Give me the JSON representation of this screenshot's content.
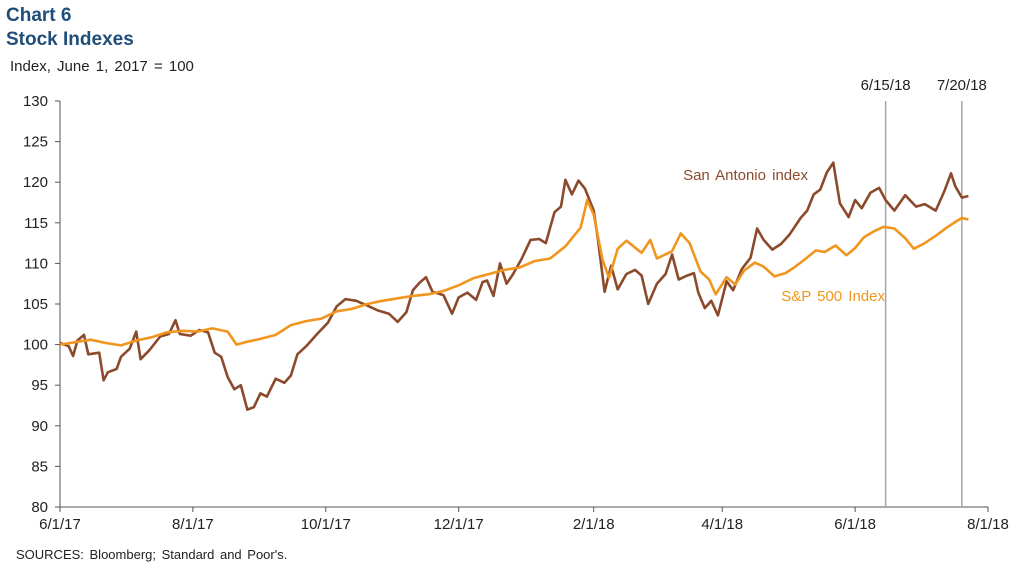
{
  "chart_data": {
    "type": "line",
    "chart_number": "Chart 6",
    "title": "Stock Indexes",
    "ylabel": "Index, June 1, 2017 = 100",
    "source": "SOURCES: Bloomberg; Standard and Poor's.",
    "ylim": [
      80,
      130
    ],
    "y_ticks": [
      80,
      85,
      90,
      95,
      100,
      105,
      110,
      115,
      120,
      125,
      130
    ],
    "xlim": [
      "2017-06-01",
      "2018-08-01"
    ],
    "x_ticks": [
      {
        "date": "2017-06-01",
        "label": "6/1/17"
      },
      {
        "date": "2017-08-01",
        "label": "8/1/17"
      },
      {
        "date": "2017-10-01",
        "label": "10/1/17"
      },
      {
        "date": "2017-12-01",
        "label": "12/1/17"
      },
      {
        "date": "2018-02-01",
        "label": "2/1/18"
      },
      {
        "date": "2018-04-01",
        "label": "4/1/18"
      },
      {
        "date": "2018-06-01",
        "label": "6/1/18"
      },
      {
        "date": "2018-08-01",
        "label": "8/1/18"
      }
    ],
    "markers": [
      {
        "date": "2018-06-15",
        "label": "6/15/18"
      },
      {
        "date": "2018-07-20",
        "label": "7/20/18"
      }
    ],
    "grid": false,
    "series": [
      {
        "name": "San Antonio index",
        "color": "#8b4a2b",
        "points": [
          [
            "2017-06-01",
            100.2
          ],
          [
            "2017-06-05",
            99.8
          ],
          [
            "2017-06-07",
            98.6
          ],
          [
            "2017-06-09",
            100.5
          ],
          [
            "2017-06-12",
            101.2
          ],
          [
            "2017-06-14",
            98.8
          ],
          [
            "2017-06-19",
            99.0
          ],
          [
            "2017-06-21",
            95.6
          ],
          [
            "2017-06-23",
            96.6
          ],
          [
            "2017-06-27",
            97.0
          ],
          [
            "2017-06-29",
            98.5
          ],
          [
            "2017-07-03",
            99.5
          ],
          [
            "2017-07-06",
            101.6
          ],
          [
            "2017-07-08",
            98.2
          ],
          [
            "2017-07-12",
            99.3
          ],
          [
            "2017-07-17",
            101.0
          ],
          [
            "2017-07-21",
            101.3
          ],
          [
            "2017-07-24",
            103.0
          ],
          [
            "2017-07-26",
            101.3
          ],
          [
            "2017-07-31",
            101.1
          ],
          [
            "2017-08-04",
            101.8
          ],
          [
            "2017-08-08",
            101.5
          ],
          [
            "2017-08-11",
            99.0
          ],
          [
            "2017-08-14",
            98.5
          ],
          [
            "2017-08-17",
            96.0
          ],
          [
            "2017-08-20",
            94.5
          ],
          [
            "2017-08-23",
            95.0
          ],
          [
            "2017-08-26",
            92.0
          ],
          [
            "2017-08-29",
            92.3
          ],
          [
            "2017-09-01",
            94.0
          ],
          [
            "2017-09-04",
            93.6
          ],
          [
            "2017-09-08",
            95.8
          ],
          [
            "2017-09-12",
            95.3
          ],
          [
            "2017-09-15",
            96.2
          ],
          [
            "2017-09-18",
            98.8
          ],
          [
            "2017-09-22",
            99.8
          ],
          [
            "2017-09-27",
            101.3
          ],
          [
            "2017-10-02",
            102.7
          ],
          [
            "2017-10-06",
            104.7
          ],
          [
            "2017-10-10",
            105.6
          ],
          [
            "2017-10-15",
            105.4
          ],
          [
            "2017-10-20",
            104.8
          ],
          [
            "2017-10-25",
            104.2
          ],
          [
            "2017-10-30",
            103.8
          ],
          [
            "2017-11-03",
            102.8
          ],
          [
            "2017-11-07",
            104.0
          ],
          [
            "2017-11-10",
            106.7
          ],
          [
            "2017-11-13",
            107.6
          ],
          [
            "2017-11-16",
            108.3
          ],
          [
            "2017-11-19",
            106.5
          ],
          [
            "2017-11-24",
            106.1
          ],
          [
            "2017-11-28",
            103.8
          ],
          [
            "2017-12-01",
            105.8
          ],
          [
            "2017-12-05",
            106.4
          ],
          [
            "2017-12-09",
            105.5
          ],
          [
            "2017-12-12",
            107.7
          ],
          [
            "2017-12-14",
            107.9
          ],
          [
            "2017-12-17",
            106.0
          ],
          [
            "2017-12-20",
            110.0
          ],
          [
            "2017-12-23",
            107.5
          ],
          [
            "2017-12-26",
            108.7
          ],
          [
            "2017-12-30",
            110.6
          ],
          [
            "2018-01-03",
            112.9
          ],
          [
            "2018-01-07",
            113.0
          ],
          [
            "2018-01-10",
            112.5
          ],
          [
            "2018-01-14",
            116.3
          ],
          [
            "2018-01-17",
            117.0
          ],
          [
            "2018-01-19",
            120.3
          ],
          [
            "2018-01-22",
            118.5
          ],
          [
            "2018-01-25",
            120.2
          ],
          [
            "2018-01-28",
            119.2
          ],
          [
            "2018-02-01",
            116.5
          ],
          [
            "2018-02-03",
            112.8
          ],
          [
            "2018-02-06",
            106.5
          ],
          [
            "2018-02-09",
            109.7
          ],
          [
            "2018-02-12",
            106.8
          ],
          [
            "2018-02-16",
            108.7
          ],
          [
            "2018-02-20",
            109.2
          ],
          [
            "2018-02-23",
            108.5
          ],
          [
            "2018-02-26",
            105.0
          ],
          [
            "2018-03-02",
            107.5
          ],
          [
            "2018-03-06",
            108.7
          ],
          [
            "2018-03-09",
            111.1
          ],
          [
            "2018-03-12",
            108.0
          ],
          [
            "2018-03-15",
            108.4
          ],
          [
            "2018-03-19",
            108.8
          ],
          [
            "2018-03-21",
            106.4
          ],
          [
            "2018-03-24",
            104.5
          ],
          [
            "2018-03-27",
            105.4
          ],
          [
            "2018-03-30",
            103.6
          ],
          [
            "2018-04-03",
            107.8
          ],
          [
            "2018-04-06",
            106.7
          ],
          [
            "2018-04-10",
            109.3
          ],
          [
            "2018-04-14",
            110.7
          ],
          [
            "2018-04-17",
            114.3
          ],
          [
            "2018-04-20",
            112.9
          ],
          [
            "2018-04-24",
            111.7
          ],
          [
            "2018-04-28",
            112.4
          ],
          [
            "2018-05-02",
            113.6
          ],
          [
            "2018-05-07",
            115.6
          ],
          [
            "2018-05-10",
            116.5
          ],
          [
            "2018-05-13",
            118.5
          ],
          [
            "2018-05-16",
            119.1
          ],
          [
            "2018-05-19",
            121.2
          ],
          [
            "2018-05-22",
            122.4
          ],
          [
            "2018-05-25",
            117.4
          ],
          [
            "2018-05-29",
            115.7
          ],
          [
            "2018-06-01",
            117.8
          ],
          [
            "2018-06-04",
            116.8
          ],
          [
            "2018-06-08",
            118.7
          ],
          [
            "2018-06-12",
            119.3
          ],
          [
            "2018-06-15",
            117.8
          ],
          [
            "2018-06-19",
            116.5
          ],
          [
            "2018-06-24",
            118.4
          ],
          [
            "2018-06-29",
            117.0
          ],
          [
            "2018-07-03",
            117.3
          ],
          [
            "2018-07-08",
            116.5
          ],
          [
            "2018-07-12",
            118.9
          ],
          [
            "2018-07-15",
            121.1
          ],
          [
            "2018-07-17",
            119.5
          ],
          [
            "2018-07-20",
            118.1
          ],
          [
            "2018-07-23",
            118.3
          ]
        ]
      },
      {
        "name": "S&P 500 Index",
        "color": "#f0961e",
        "points": [
          [
            "2017-06-01",
            100.0
          ],
          [
            "2017-06-08",
            100.3
          ],
          [
            "2017-06-15",
            100.6
          ],
          [
            "2017-06-22",
            100.2
          ],
          [
            "2017-06-29",
            99.9
          ],
          [
            "2017-07-06",
            100.5
          ],
          [
            "2017-07-13",
            100.9
          ],
          [
            "2017-07-20",
            101.5
          ],
          [
            "2017-07-27",
            101.7
          ],
          [
            "2017-08-03",
            101.6
          ],
          [
            "2017-08-10",
            102.0
          ],
          [
            "2017-08-17",
            101.6
          ],
          [
            "2017-08-21",
            100.0
          ],
          [
            "2017-08-25",
            100.3
          ],
          [
            "2017-09-01",
            100.7
          ],
          [
            "2017-09-08",
            101.2
          ],
          [
            "2017-09-15",
            102.4
          ],
          [
            "2017-09-22",
            102.9
          ],
          [
            "2017-09-29",
            103.2
          ],
          [
            "2017-10-06",
            104.1
          ],
          [
            "2017-10-13",
            104.4
          ],
          [
            "2017-10-20",
            105.0
          ],
          [
            "2017-10-27",
            105.4
          ],
          [
            "2017-11-03",
            105.7
          ],
          [
            "2017-11-10",
            106.0
          ],
          [
            "2017-11-17",
            106.2
          ],
          [
            "2017-11-24",
            106.6
          ],
          [
            "2017-12-01",
            107.3
          ],
          [
            "2017-12-08",
            108.2
          ],
          [
            "2017-12-15",
            108.7
          ],
          [
            "2017-12-22",
            109.2
          ],
          [
            "2017-12-29",
            109.5
          ],
          [
            "2018-01-05",
            110.3
          ],
          [
            "2018-01-12",
            110.6
          ],
          [
            "2018-01-19",
            112.1
          ],
          [
            "2018-01-26",
            114.4
          ],
          [
            "2018-01-29",
            117.8
          ],
          [
            "2018-02-01",
            116.0
          ],
          [
            "2018-02-05",
            110.5
          ],
          [
            "2018-02-08",
            108.2
          ],
          [
            "2018-02-12",
            111.8
          ],
          [
            "2018-02-16",
            112.8
          ],
          [
            "2018-02-23",
            111.3
          ],
          [
            "2018-02-27",
            112.9
          ],
          [
            "2018-03-02",
            110.6
          ],
          [
            "2018-03-09",
            111.5
          ],
          [
            "2018-03-13",
            113.7
          ],
          [
            "2018-03-17",
            112.5
          ],
          [
            "2018-03-22",
            109.0
          ],
          [
            "2018-03-26",
            108.0
          ],
          [
            "2018-03-29",
            106.2
          ],
          [
            "2018-04-03",
            108.3
          ],
          [
            "2018-04-07",
            107.4
          ],
          [
            "2018-04-11",
            109.1
          ],
          [
            "2018-04-16",
            110.1
          ],
          [
            "2018-04-20",
            109.6
          ],
          [
            "2018-04-25",
            108.4
          ],
          [
            "2018-04-30",
            108.8
          ],
          [
            "2018-05-04",
            109.5
          ],
          [
            "2018-05-09",
            110.5
          ],
          [
            "2018-05-14",
            111.6
          ],
          [
            "2018-05-18",
            111.4
          ],
          [
            "2018-05-23",
            112.2
          ],
          [
            "2018-05-28",
            111.0
          ],
          [
            "2018-06-01",
            111.9
          ],
          [
            "2018-06-05",
            113.2
          ],
          [
            "2018-06-10",
            114.0
          ],
          [
            "2018-06-14",
            114.5
          ],
          [
            "2018-06-19",
            114.3
          ],
          [
            "2018-06-24",
            113.1
          ],
          [
            "2018-06-28",
            111.8
          ],
          [
            "2018-07-03",
            112.5
          ],
          [
            "2018-07-08",
            113.4
          ],
          [
            "2018-07-13",
            114.4
          ],
          [
            "2018-07-17",
            115.1
          ],
          [
            "2018-07-20",
            115.6
          ],
          [
            "2018-07-23",
            115.4
          ]
        ]
      }
    ]
  }
}
